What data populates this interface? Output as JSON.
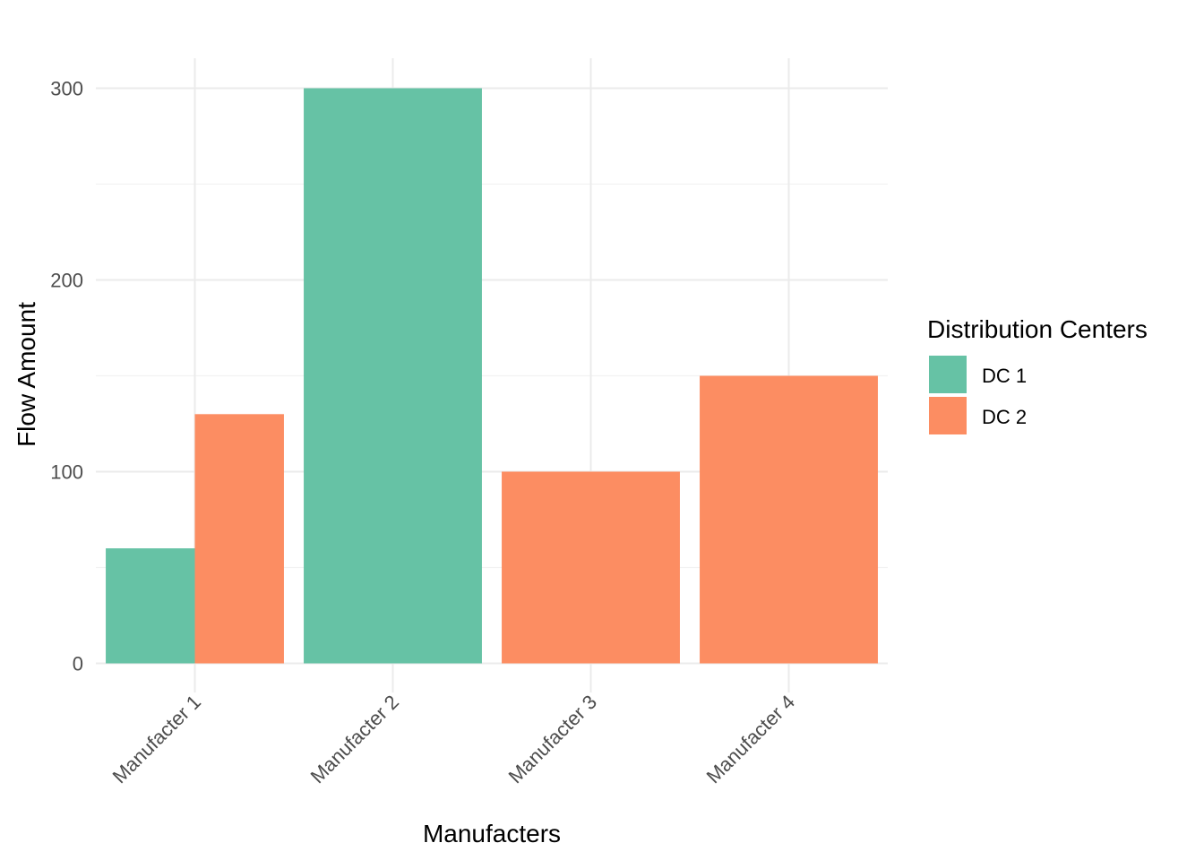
{
  "chart_data": {
    "type": "bar",
    "bar_mode": "dodge",
    "categories": [
      "Manufacter 1",
      "Manufacter 2",
      "Manufacter 3",
      "Manufacter 4"
    ],
    "series": [
      {
        "name": "DC 1",
        "color": "#66C2A5",
        "values": [
          60,
          300,
          null,
          null
        ]
      },
      {
        "name": "DC 2",
        "color": "#FC8D62",
        "values": [
          130,
          null,
          100,
          150
        ]
      }
    ],
    "xlabel": "Manufacters",
    "ylabel": "Flow Amount",
    "ylim": [
      0,
      310
    ],
    "yticks": [
      0,
      100,
      200,
      300
    ],
    "grid": true,
    "legend": {
      "title": "Distribution Centers",
      "position": "right"
    }
  }
}
